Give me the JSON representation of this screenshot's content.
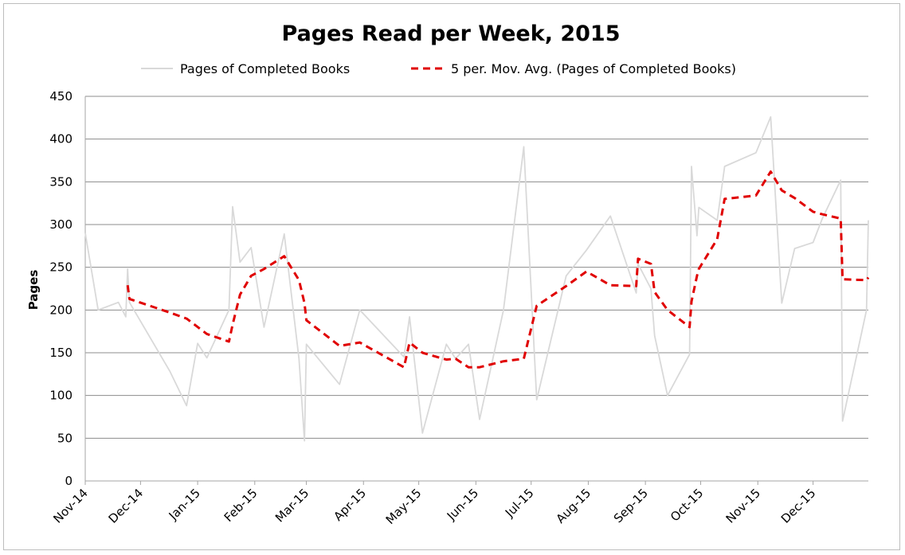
{
  "chart_data": {
    "type": "line",
    "title": "Pages Read per Week, 2015",
    "xlabel": "",
    "ylabel": "Pages",
    "ylim": [
      0,
      450
    ],
    "yticks": [
      0,
      50,
      100,
      150,
      200,
      250,
      300,
      350,
      400,
      450
    ],
    "xlim": [
      "2014-11-01",
      "2015-12-31"
    ],
    "xticks": [
      {
        "date": "2014-11-01",
        "label": "Nov-14"
      },
      {
        "date": "2014-12-01",
        "label": "Dec-14"
      },
      {
        "date": "2015-01-01",
        "label": "Jan-15"
      },
      {
        "date": "2015-02-01",
        "label": "Feb-15"
      },
      {
        "date": "2015-03-01",
        "label": "Mar-15"
      },
      {
        "date": "2015-04-01",
        "label": "Apr-15"
      },
      {
        "date": "2015-05-01",
        "label": "May-15"
      },
      {
        "date": "2015-06-01",
        "label": "Jun-15"
      },
      {
        "date": "2015-07-01",
        "label": "Jul-15"
      },
      {
        "date": "2015-08-01",
        "label": "Aug-15"
      },
      {
        "date": "2015-09-01",
        "label": "Sep-15"
      },
      {
        "date": "2015-10-01",
        "label": "Oct-15"
      },
      {
        "date": "2015-11-01",
        "label": "Nov-15"
      },
      {
        "date": "2015-12-01",
        "label": "Dec-15"
      }
    ],
    "grid": true,
    "legend_position": "top",
    "series": [
      {
        "name": "Pages of Completed Books",
        "color": "#d9d9d9",
        "style": "solid",
        "points": [
          [
            "2014-11-01",
            290
          ],
          [
            "2014-11-08",
            200
          ],
          [
            "2014-11-19",
            209
          ],
          [
            "2014-11-23",
            192
          ],
          [
            "2014-11-24",
            248
          ],
          [
            "2014-11-25",
            209
          ],
          [
            "2014-12-17",
            128
          ],
          [
            "2014-12-26",
            88
          ],
          [
            "2015-01-01",
            161
          ],
          [
            "2015-01-06",
            144
          ],
          [
            "2015-01-18",
            200
          ],
          [
            "2015-01-20",
            321
          ],
          [
            "2015-01-24",
            256
          ],
          [
            "2015-01-30",
            273
          ],
          [
            "2015-02-06",
            180
          ],
          [
            "2015-02-17",
            289
          ],
          [
            "2015-02-25",
            143
          ],
          [
            "2015-02-28",
            47
          ],
          [
            "2015-03-01",
            160
          ],
          [
            "2015-03-19",
            113
          ],
          [
            "2015-03-30",
            200
          ],
          [
            "2015-04-23",
            145
          ],
          [
            "2015-04-26",
            192
          ],
          [
            "2015-05-03",
            56
          ],
          [
            "2015-05-16",
            160
          ],
          [
            "2015-05-21",
            143
          ],
          [
            "2015-05-28",
            160
          ],
          [
            "2015-06-03",
            72
          ],
          [
            "2015-06-16",
            200
          ],
          [
            "2015-06-27",
            391
          ],
          [
            "2015-07-04",
            95
          ],
          [
            "2015-07-20",
            240
          ],
          [
            "2015-07-31",
            270
          ],
          [
            "2015-08-13",
            310
          ],
          [
            "2015-08-27",
            220
          ],
          [
            "2015-08-28",
            254
          ],
          [
            "2015-09-04",
            225
          ],
          [
            "2015-09-06",
            170
          ],
          [
            "2015-09-13",
            100
          ],
          [
            "2015-09-25",
            148
          ],
          [
            "2015-09-26",
            368
          ],
          [
            "2015-09-29",
            287
          ],
          [
            "2015-09-30",
            320
          ],
          [
            "2015-10-10",
            305
          ],
          [
            "2015-10-14",
            368
          ],
          [
            "2015-10-31",
            384
          ],
          [
            "2015-11-08",
            426
          ],
          [
            "2015-11-14",
            208
          ],
          [
            "2015-11-21",
            272
          ],
          [
            "2015-12-01",
            279
          ],
          [
            "2015-12-06",
            307
          ],
          [
            "2015-12-16",
            352
          ],
          [
            "2015-12-17",
            70
          ],
          [
            "2015-12-30",
            200
          ],
          [
            "2015-12-31",
            305
          ]
        ]
      },
      {
        "name": "5 per. Mov. Avg. (Pages of Completed Books)",
        "color": "#e00000",
        "style": "dashed",
        "points": [
          [
            "2014-11-24",
            229
          ],
          [
            "2014-11-25",
            213
          ],
          [
            "2014-12-17",
            197
          ],
          [
            "2014-12-26",
            190
          ],
          [
            "2015-01-06",
            172
          ],
          [
            "2015-01-18",
            163
          ],
          [
            "2015-01-20",
            183
          ],
          [
            "2015-01-24",
            218
          ],
          [
            "2015-01-30",
            240
          ],
          [
            "2015-02-06",
            248
          ],
          [
            "2015-02-17",
            263
          ],
          [
            "2015-02-25",
            235
          ],
          [
            "2015-02-28",
            208
          ],
          [
            "2015-03-01",
            188
          ],
          [
            "2015-03-19",
            158
          ],
          [
            "2015-03-30",
            162
          ],
          [
            "2015-04-23",
            133
          ],
          [
            "2015-04-26",
            162
          ],
          [
            "2015-05-03",
            150
          ],
          [
            "2015-05-16",
            142
          ],
          [
            "2015-05-21",
            143
          ],
          [
            "2015-05-28",
            133
          ],
          [
            "2015-06-03",
            133
          ],
          [
            "2015-06-16",
            140
          ],
          [
            "2015-06-27",
            143
          ],
          [
            "2015-07-04",
            205
          ],
          [
            "2015-07-20",
            228
          ],
          [
            "2015-07-31",
            245
          ],
          [
            "2015-08-13",
            229
          ],
          [
            "2015-08-27",
            228
          ],
          [
            "2015-08-28",
            260
          ],
          [
            "2015-09-04",
            254
          ],
          [
            "2015-09-06",
            221
          ],
          [
            "2015-09-13",
            200
          ],
          [
            "2015-09-25",
            180
          ],
          [
            "2015-09-26",
            210
          ],
          [
            "2015-09-29",
            240
          ],
          [
            "2015-09-30",
            248
          ],
          [
            "2015-10-10",
            283
          ],
          [
            "2015-10-14",
            330
          ],
          [
            "2015-10-31",
            334
          ],
          [
            "2015-11-08",
            362
          ],
          [
            "2015-11-14",
            340
          ],
          [
            "2015-11-21",
            331
          ],
          [
            "2015-12-01",
            315
          ],
          [
            "2015-12-06",
            312
          ],
          [
            "2015-12-16",
            307
          ],
          [
            "2015-12-17",
            236
          ],
          [
            "2015-12-30",
            235
          ],
          [
            "2015-12-31",
            238
          ]
        ]
      }
    ]
  }
}
